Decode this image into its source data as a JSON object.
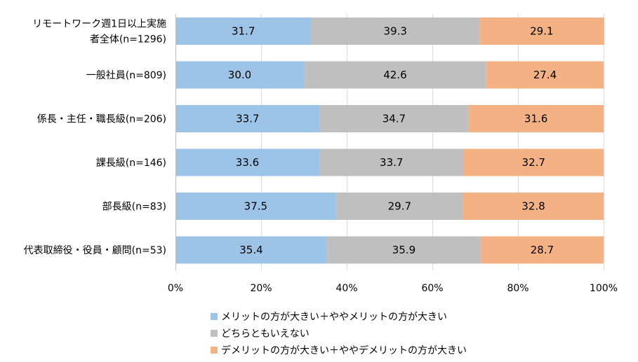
{
  "chart_data": {
    "type": "bar",
    "orientation": "horizontal",
    "stacked": true,
    "percent_scale": true,
    "categories": [
      [
        "リモートワーク週1日以上実施",
        "者全体(n=1296)"
      ],
      [
        "一般社員(n=809)"
      ],
      [
        "係長・主任・職長級(n=206)"
      ],
      [
        "課長級(n=146)"
      ],
      [
        "部長級(n=83)"
      ],
      [
        "代表取締役・役員・顧問(n=53)"
      ]
    ],
    "series": [
      {
        "name": "メリットの方が大きい＋ややメリットの方が大きい",
        "color": "#9DC3E6",
        "values": [
          31.7,
          30.0,
          33.7,
          33.6,
          37.5,
          35.4
        ],
        "labels": [
          "31.7",
          "30.0",
          "33.7",
          "33.6",
          "37.5",
          "35.4"
        ]
      },
      {
        "name": "どちらともいえない",
        "color": "#BFBFBF",
        "values": [
          39.3,
          42.6,
          34.7,
          33.7,
          29.7,
          35.9
        ],
        "labels": [
          "39.3",
          "42.6",
          "34.7",
          "33.7",
          "29.7",
          "35.9"
        ]
      },
      {
        "name": "デメリットの方が大きい＋ややデメリットの方が大きい",
        "color": "#F4B183",
        "values": [
          29.1,
          27.4,
          31.6,
          32.7,
          32.8,
          28.7
        ],
        "labels": [
          "29.1",
          "27.4",
          "31.6",
          "32.7",
          "32.8",
          "28.7"
        ]
      }
    ],
    "x_ticks": [
      "0%",
      "20%",
      "40%",
      "60%",
      "80%",
      "100%"
    ],
    "xlim": [
      0,
      100
    ],
    "grid": true,
    "legend_position": "bottom"
  }
}
